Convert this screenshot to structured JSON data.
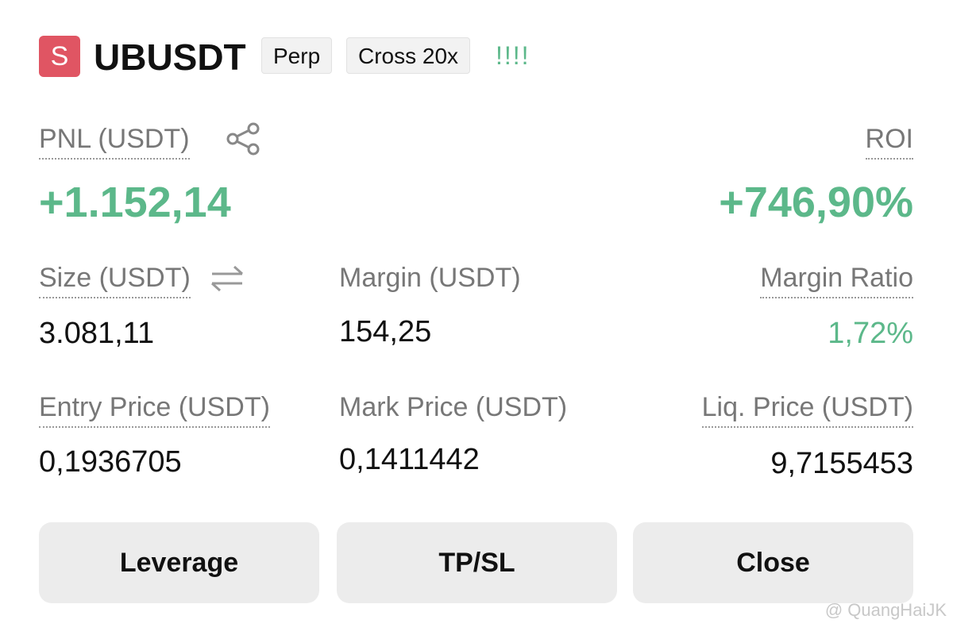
{
  "header": {
    "badge": "S",
    "symbol": "UBUSDT",
    "tags": [
      "Perp",
      "Cross 20x"
    ],
    "indicator": "!!!!"
  },
  "pnl": {
    "label": "PNL (USDT)",
    "value": "+1.152,14"
  },
  "roi": {
    "label": "ROI",
    "value": "+746,90%"
  },
  "fields": [
    {
      "label": "Size (USDT)",
      "value": "3.081,11"
    },
    {
      "label": "Margin (USDT)",
      "value": "154,25"
    },
    {
      "label": "Margin Ratio",
      "value": "1,72%"
    },
    {
      "label": "Entry Price (USDT)",
      "value": "0,1936705"
    },
    {
      "label": "Mark Price (USDT)",
      "value": "0,1411442"
    },
    {
      "label": "Liq. Price (USDT)",
      "value": "9,7155453"
    }
  ],
  "buttons": [
    "Leverage",
    "TP/SL",
    "Close"
  ],
  "watermark": "@ QuangHaiJK"
}
